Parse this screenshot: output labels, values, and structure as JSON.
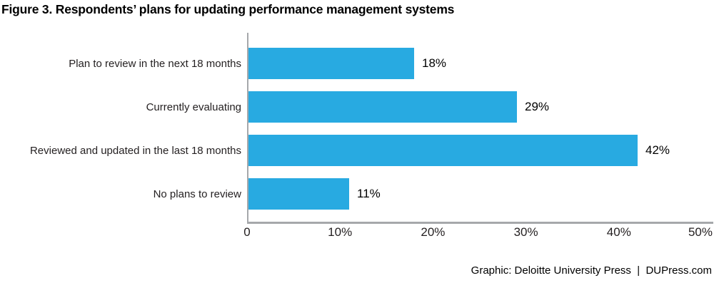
{
  "title": "Figure 3. Respondents’ plans for updating performance management systems",
  "footer": {
    "credit": "Graphic: Deloitte University Press  |  DUPress.com"
  },
  "chart_data": {
    "type": "bar",
    "orientation": "horizontal",
    "title": "Figure 3. Respondents’ plans for updating performance management systems",
    "categories": [
      "Plan to review in the next 18 months",
      "Currently evaluating",
      "Reviewed and updated in the last 18 months",
      "No plans to review"
    ],
    "values": [
      18,
      29,
      42,
      11
    ],
    "value_labels": [
      "18%",
      "29%",
      "42%",
      "11%"
    ],
    "x_tick_values": [
      0,
      10,
      20,
      30,
      40,
      50
    ],
    "x_tick_labels": [
      "0",
      "10%",
      "20%",
      "30%",
      "40%",
      "50%"
    ],
    "xlim": [
      0,
      50
    ],
    "grid": "off",
    "legend": "none",
    "bar_color": "#28AAE1",
    "axis_color": "#A6A8AB",
    "label_color": "#231f20"
  }
}
